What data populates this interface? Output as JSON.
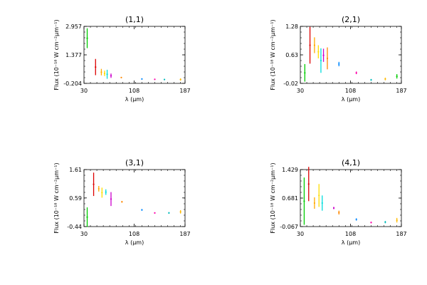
{
  "colors": {
    "axes": "#000000",
    "series": [
      "#00cc00",
      "#dd0000",
      "#ffaa00",
      "#ffdd00",
      "#00dddd",
      "#cc00cc",
      "#ff8800",
      "#0088ff",
      "#ff00aa",
      "#00bbbb",
      "#ffbb00"
    ]
  },
  "chart_data": [
    {
      "type": "scatter",
      "title": "(1,1)",
      "xlabel": "λ (μm)",
      "ylabel": "Flux (10⁻¹⁸ W cm⁻²μm⁻¹)",
      "xlim": [
        30,
        187
      ],
      "ylim": [
        -0.204,
        2.957
      ],
      "xticks": [
        "30",
        "108",
        "187"
      ],
      "yticks": [
        "2.957",
        "1.377",
        "-0.204"
      ],
      "points": [
        {
          "x": 35,
          "y": 2.3,
          "err": 0.55
        },
        {
          "x": 48,
          "y": 0.7,
          "err": 0.45
        },
        {
          "x": 57,
          "y": 0.42,
          "err": 0.18
        },
        {
          "x": 62,
          "y": 0.35,
          "err": 0.15
        },
        {
          "x": 66,
          "y": 0.3,
          "err": 0.25
        },
        {
          "x": 72,
          "y": 0.22,
          "err": 0.12
        },
        {
          "x": 88,
          "y": 0.12,
          "err": 0.03
        },
        {
          "x": 120,
          "y": 0.04,
          "err": 0.03
        },
        {
          "x": 140,
          "y": 0.02,
          "err": 0.02
        },
        {
          "x": 155,
          "y": 0.01,
          "err": 0.03
        },
        {
          "x": 180,
          "y": 0.01,
          "err": 0.06
        }
      ]
    },
    {
      "type": "scatter",
      "title": "(2,1)",
      "xlabel": "λ (μm)",
      "ylabel": "Flux (10⁻¹⁸ W cm⁻²μm⁻¹)",
      "xlim": [
        30,
        187
      ],
      "ylim": [
        -0.02,
        1.28
      ],
      "xticks": [
        "30",
        "108",
        "187"
      ],
      "yticks": [
        "1.28",
        "0.63",
        "-0.02"
      ],
      "points": [
        {
          "x": 37,
          "y": 0.22,
          "err": 0.2
        },
        {
          "x": 45,
          "y": 0.85,
          "err": 0.42
        },
        {
          "x": 52,
          "y": 0.85,
          "err": 0.18
        },
        {
          "x": 58,
          "y": 0.7,
          "err": 0.15
        },
        {
          "x": 62,
          "y": 0.5,
          "err": 0.28
        },
        {
          "x": 66,
          "y": 0.62,
          "err": 0.15
        },
        {
          "x": 72,
          "y": 0.55,
          "err": 0.25
        },
        {
          "x": 90,
          "y": 0.42,
          "err": 0.05
        },
        {
          "x": 117,
          "y": 0.22,
          "err": 0.03
        },
        {
          "x": 140,
          "y": 0.06,
          "err": 0.02
        },
        {
          "x": 162,
          "y": 0.08,
          "err": 0.03
        },
        {
          "x": 180,
          "y": 0.14,
          "err": 0.05
        }
      ]
    },
    {
      "type": "scatter",
      "title": "(3,1)",
      "xlabel": "λ (μm)",
      "ylabel": "Flux (10⁻¹⁸ W cm⁻²μm⁻¹)",
      "xlim": [
        30,
        187
      ],
      "ylim": [
        -0.44,
        1.61
      ],
      "xticks": [
        "30",
        "108",
        "187"
      ],
      "yticks": [
        "1.61",
        "0.59",
        "-0.44"
      ],
      "points": [
        {
          "x": 35,
          "y": -0.1,
          "err": 0.35
        },
        {
          "x": 45,
          "y": 1.08,
          "err": 0.42
        },
        {
          "x": 53,
          "y": 0.92,
          "err": 0.1
        },
        {
          "x": 58,
          "y": 0.78,
          "err": 0.18
        },
        {
          "x": 64,
          "y": 0.8,
          "err": 0.1
        },
        {
          "x": 72,
          "y": 0.55,
          "err": 0.25
        },
        {
          "x": 89,
          "y": 0.45,
          "err": 0.03
        },
        {
          "x": 120,
          "y": 0.16,
          "err": 0.03
        },
        {
          "x": 140,
          "y": 0.05,
          "err": 0.02
        },
        {
          "x": 162,
          "y": 0.05,
          "err": 0.03
        },
        {
          "x": 180,
          "y": 0.09,
          "err": 0.06
        }
      ]
    },
    {
      "type": "scatter",
      "title": "(4,1)",
      "xlabel": "λ (μm)",
      "ylabel": "Flux (10⁻¹⁸ W cm⁻²μm⁻¹)",
      "xlim": [
        30,
        187
      ],
      "ylim": [
        -0.067,
        1.429
      ],
      "xticks": [
        "30",
        "108",
        "187"
      ],
      "yticks": [
        "1.429",
        "0.681",
        "-0.067"
      ],
      "points": [
        {
          "x": 36,
          "y": 0.6,
          "err": 0.62
        },
        {
          "x": 43,
          "y": 1.05,
          "err": 0.45
        },
        {
          "x": 52,
          "y": 0.55,
          "err": 0.15
        },
        {
          "x": 59,
          "y": 0.75,
          "err": 0.3
        },
        {
          "x": 64,
          "y": 0.55,
          "err": 0.2
        },
        {
          "x": 82,
          "y": 0.42,
          "err": 0.03
        },
        {
          "x": 90,
          "y": 0.3,
          "err": 0.05
        },
        {
          "x": 117,
          "y": 0.12,
          "err": 0.03
        },
        {
          "x": 140,
          "y": 0.04,
          "err": 0.02
        },
        {
          "x": 162,
          "y": 0.05,
          "err": 0.03
        },
        {
          "x": 180,
          "y": 0.1,
          "err": 0.06
        }
      ]
    }
  ]
}
